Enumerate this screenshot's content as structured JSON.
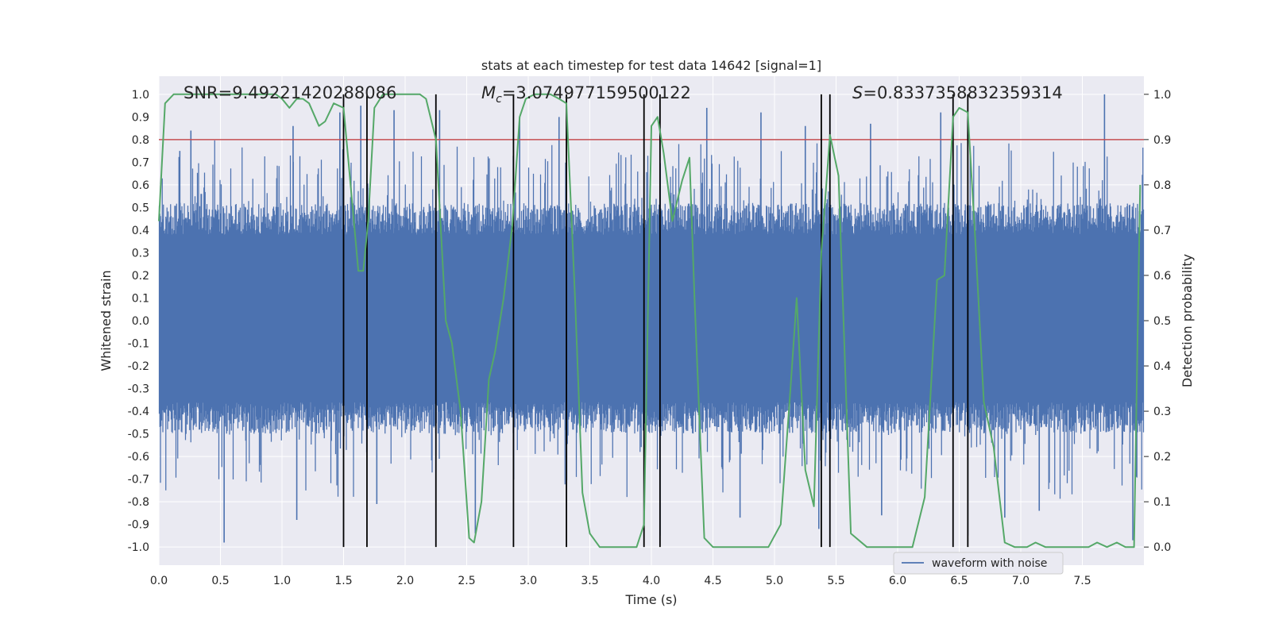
{
  "chart_data": {
    "type": "line",
    "title": "stats at each timestep for test data 14642 [signal=1]",
    "xlabel": "Time (s)",
    "ylabel_left": "Whitened strain",
    "ylabel_right": "Detection probability",
    "xlim": [
      0.0,
      8.0
    ],
    "ylim_left": [
      -1.08,
      1.08
    ],
    "ylim_right": [
      -0.04,
      1.04
    ],
    "x_ticks": [
      "0.0",
      "0.5",
      "1.0",
      "1.5",
      "2.0",
      "2.5",
      "3.0",
      "3.5",
      "4.0",
      "4.5",
      "5.0",
      "5.5",
      "6.0",
      "6.5",
      "7.0",
      "7.5"
    ],
    "y_ticks_left": [
      "-1.0",
      "-0.9",
      "-0.8",
      "-0.7",
      "-0.6",
      "-0.5",
      "-0.4",
      "-0.3",
      "-0.2",
      "-0.1",
      "0.0",
      "0.1",
      "0.2",
      "0.3",
      "0.4",
      "0.5",
      "0.6",
      "0.7",
      "0.8",
      "0.9",
      "1.0"
    ],
    "y_ticks_right": [
      "0.0",
      "0.1",
      "0.2",
      "0.3",
      "0.4",
      "0.5",
      "0.6",
      "0.7",
      "0.8",
      "0.9",
      "1.0"
    ],
    "threshold": 0.9,
    "annotations": {
      "snr": "SNR=9.49221420288086",
      "mc_symbol": "M",
      "mc_sub": "c",
      "mc_value": "=3.074977159500122",
      "s_symbol": "S",
      "s_value": "=0.8337358832359314"
    },
    "vlines": [
      1.5,
      1.69,
      2.25,
      2.88,
      3.31,
      3.94,
      4.07,
      5.38,
      5.45,
      6.45,
      6.57
    ],
    "series": [
      {
        "name": "waveform with noise",
        "color": "#4c72b0",
        "typical_envelope": 0.45,
        "spikes": [
          {
            "t": 0.17,
            "v": 0.75
          },
          {
            "t": 0.26,
            "v": 0.84
          },
          {
            "t": 0.53,
            "v": -0.98
          },
          {
            "t": 1.09,
            "v": 0.86
          },
          {
            "t": 1.12,
            "v": -0.88
          },
          {
            "t": 1.47,
            "v": 0.92
          },
          {
            "t": 1.64,
            "v": 0.95
          },
          {
            "t": 1.77,
            "v": -0.81
          },
          {
            "t": 1.91,
            "v": 0.93
          },
          {
            "t": 2.28,
            "v": 0.93
          },
          {
            "t": 2.57,
            "v": -0.94
          },
          {
            "t": 2.93,
            "v": 0.9
          },
          {
            "t": 3.25,
            "v": 0.9
          },
          {
            "t": 4.07,
            "v": -0.95
          },
          {
            "t": 4.45,
            "v": 0.94
          },
          {
            "t": 4.72,
            "v": -0.87
          },
          {
            "t": 4.89,
            "v": 0.92
          },
          {
            "t": 5.25,
            "v": 0.86
          },
          {
            "t": 5.36,
            "v": -0.92
          },
          {
            "t": 5.78,
            "v": 0.87
          },
          {
            "t": 5.87,
            "v": -0.86
          },
          {
            "t": 6.35,
            "v": 0.92
          },
          {
            "t": 6.57,
            "v": -0.95
          },
          {
            "t": 6.87,
            "v": -0.87
          },
          {
            "t": 7.15,
            "v": -0.84
          },
          {
            "t": 7.68,
            "v": 1.0
          },
          {
            "t": 7.91,
            "v": -0.97
          }
        ]
      },
      {
        "name": "detection probability",
        "color": "#55a868",
        "axis": "right",
        "points": [
          [
            0.0,
            0.72
          ],
          [
            0.05,
            0.98
          ],
          [
            0.12,
            1.0
          ],
          [
            0.95,
            1.0
          ],
          [
            1.0,
            0.99
          ],
          [
            1.06,
            0.97
          ],
          [
            1.12,
            0.99
          ],
          [
            1.17,
            0.99
          ],
          [
            1.22,
            0.98
          ],
          [
            1.3,
            0.93
          ],
          [
            1.35,
            0.94
          ],
          [
            1.42,
            0.98
          ],
          [
            1.5,
            0.97
          ],
          [
            1.55,
            0.82
          ],
          [
            1.62,
            0.61
          ],
          [
            1.66,
            0.61
          ],
          [
            1.7,
            0.72
          ],
          [
            1.75,
            0.97
          ],
          [
            1.82,
            1.0
          ],
          [
            2.12,
            1.0
          ],
          [
            2.17,
            0.99
          ],
          [
            2.25,
            0.9
          ],
          [
            2.33,
            0.5
          ],
          [
            2.38,
            0.45
          ],
          [
            2.45,
            0.3
          ],
          [
            2.52,
            0.02
          ],
          [
            2.56,
            0.01
          ],
          [
            2.62,
            0.1
          ],
          [
            2.68,
            0.37
          ],
          [
            2.73,
            0.43
          ],
          [
            2.8,
            0.55
          ],
          [
            2.87,
            0.71
          ],
          [
            2.93,
            0.95
          ],
          [
            2.98,
            0.99
          ],
          [
            3.05,
            1.0
          ],
          [
            3.18,
            1.0
          ],
          [
            3.25,
            0.99
          ],
          [
            3.31,
            0.98
          ],
          [
            3.38,
            0.55
          ],
          [
            3.44,
            0.12
          ],
          [
            3.5,
            0.03
          ],
          [
            3.58,
            0.0
          ],
          [
            3.88,
            0.0
          ],
          [
            3.94,
            0.05
          ],
          [
            4.0,
            0.93
          ],
          [
            4.05,
            0.95
          ],
          [
            4.1,
            0.87
          ],
          [
            4.17,
            0.72
          ],
          [
            4.25,
            0.81
          ],
          [
            4.31,
            0.86
          ],
          [
            4.35,
            0.55
          ],
          [
            4.43,
            0.02
          ],
          [
            4.5,
            0.0
          ],
          [
            4.65,
            0.0
          ],
          [
            4.75,
            0.0
          ],
          [
            4.95,
            0.0
          ],
          [
            5.05,
            0.05
          ],
          [
            5.13,
            0.35
          ],
          [
            5.18,
            0.55
          ],
          [
            5.25,
            0.17
          ],
          [
            5.32,
            0.09
          ],
          [
            5.38,
            0.65
          ],
          [
            5.45,
            0.91
          ],
          [
            5.52,
            0.82
          ],
          [
            5.62,
            0.03
          ],
          [
            5.75,
            0.0
          ],
          [
            5.85,
            0.0
          ],
          [
            6.0,
            0.0
          ],
          [
            6.12,
            0.0
          ],
          [
            6.22,
            0.11
          ],
          [
            6.32,
            0.59
          ],
          [
            6.38,
            0.6
          ],
          [
            6.45,
            0.95
          ],
          [
            6.5,
            0.97
          ],
          [
            6.57,
            0.96
          ],
          [
            6.63,
            0.68
          ],
          [
            6.7,
            0.32
          ],
          [
            6.78,
            0.22
          ],
          [
            6.87,
            0.01
          ],
          [
            6.95,
            0.0
          ],
          [
            7.05,
            0.0
          ],
          [
            7.12,
            0.01
          ],
          [
            7.2,
            0.0
          ],
          [
            7.55,
            0.0
          ],
          [
            7.62,
            0.01
          ],
          [
            7.7,
            0.0
          ],
          [
            7.78,
            0.01
          ],
          [
            7.85,
            0.0
          ],
          [
            7.92,
            0.0
          ],
          [
            7.97,
            0.8
          ]
        ]
      }
    ],
    "legend": {
      "label": "waveform with noise",
      "placement": "lower-right"
    }
  },
  "colors": {
    "axes_bg": "#eaeaf2",
    "grid": "#ffffff",
    "strain": "#4c72b0",
    "probability": "#55a868",
    "threshold": "#c44e52",
    "vline": "#000000"
  }
}
